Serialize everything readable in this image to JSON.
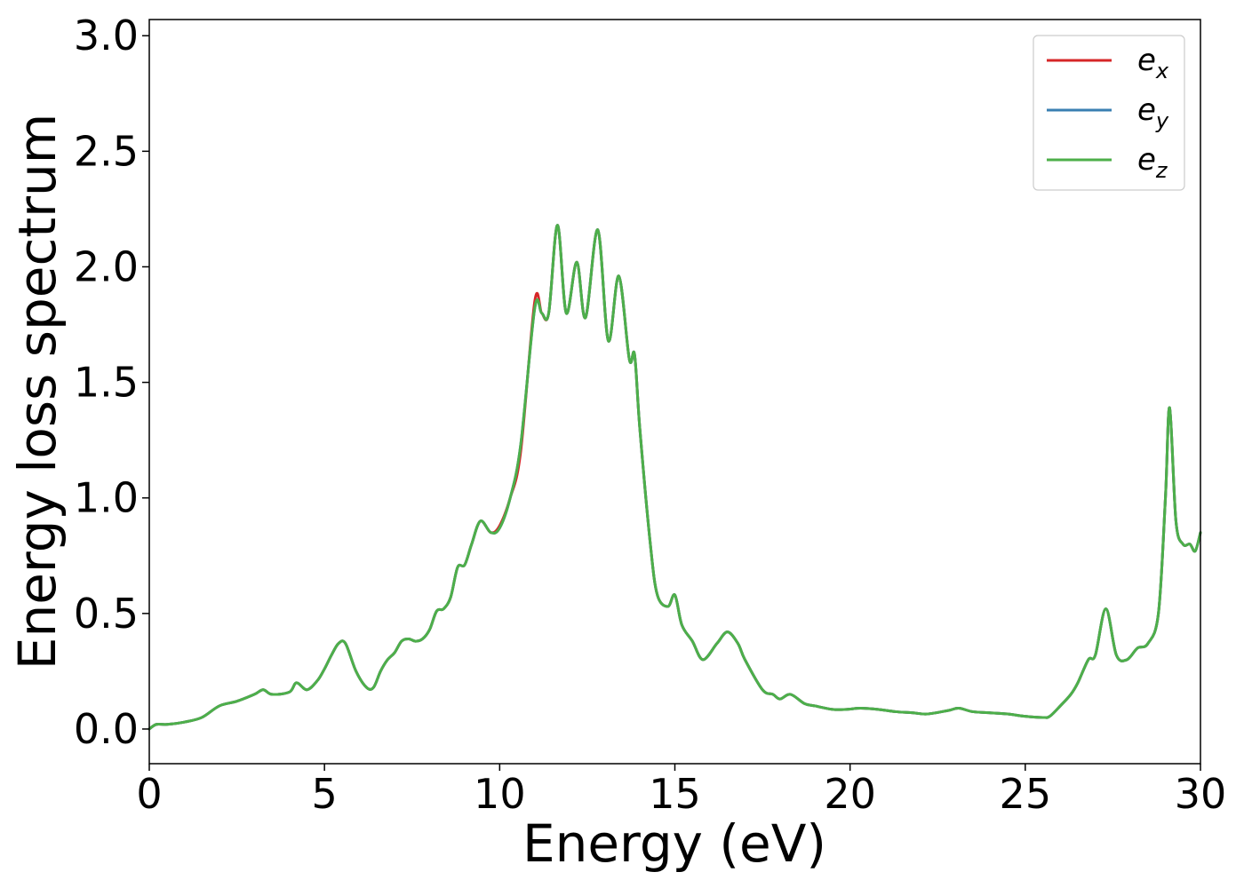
{
  "chart_data": {
    "type": "line",
    "title": "",
    "xlabel": "Energy (eV)",
    "ylabel": "Energy loss spectrum",
    "xlim": [
      0,
      30
    ],
    "ylim": [
      -0.15,
      3.07
    ],
    "xticks": [
      0,
      5,
      10,
      15,
      20,
      25,
      30
    ],
    "xtick_labels": [
      "0",
      "5",
      "10",
      "15",
      "20",
      "25",
      "30"
    ],
    "yticks": [
      0.0,
      0.5,
      1.0,
      1.5,
      2.0,
      2.5,
      3.0
    ],
    "ytick_labels": [
      "0.0",
      "0.5",
      "1.0",
      "1.5",
      "2.0",
      "2.5",
      "3.0"
    ],
    "grid": false,
    "legend_position": "top-right",
    "colors": {
      "ex": "#d62728",
      "ey": "#3a7fb2",
      "ez": "#4daf4a"
    },
    "series": [
      {
        "name": "e_x",
        "label_base": "e",
        "label_sub": "x",
        "color": "#d62728",
        "x": [
          0,
          0.2,
          0.5,
          1.0,
          1.5,
          2.0,
          2.5,
          3.0,
          3.25,
          3.5,
          4.0,
          4.2,
          4.5,
          4.8,
          5.0,
          5.2,
          5.4,
          5.6,
          5.9,
          6.2,
          6.4,
          6.6,
          6.8,
          7.0,
          7.2,
          7.4,
          7.6,
          7.8,
          8.0,
          8.2,
          8.4,
          8.6,
          8.8,
          9.0,
          9.2,
          9.45,
          9.75,
          10.0,
          10.3,
          10.6,
          11.0,
          11.2,
          11.4,
          11.65,
          11.9,
          12.2,
          12.45,
          12.8,
          13.1,
          13.4,
          13.7,
          13.85,
          14.0,
          14.3,
          14.5,
          14.8,
          15.0,
          15.2,
          15.5,
          15.8,
          16.2,
          16.5,
          16.8,
          17.0,
          17.5,
          17.8,
          18.0,
          18.3,
          18.7,
          19.0,
          19.5,
          19.9,
          20.3,
          20.8,
          21.3,
          21.8,
          22.2,
          22.8,
          23.1,
          23.5,
          24.0,
          24.5,
          25.0,
          25.5,
          25.7,
          26.0,
          26.3,
          26.5,
          26.8,
          27.0,
          27.3,
          27.6,
          27.9,
          28.2,
          28.5,
          28.8,
          29.0,
          29.12,
          29.3,
          29.5,
          29.7,
          29.85,
          30.0
        ],
        "values": [
          0.0,
          0.02,
          0.02,
          0.03,
          0.05,
          0.1,
          0.12,
          0.15,
          0.17,
          0.15,
          0.16,
          0.2,
          0.17,
          0.21,
          0.26,
          0.32,
          0.37,
          0.37,
          0.25,
          0.18,
          0.18,
          0.25,
          0.3,
          0.33,
          0.38,
          0.39,
          0.38,
          0.39,
          0.43,
          0.51,
          0.52,
          0.57,
          0.7,
          0.71,
          0.8,
          0.9,
          0.85,
          0.88,
          1.0,
          1.2,
          1.85,
          1.8,
          1.8,
          2.18,
          1.8,
          2.02,
          1.78,
          2.16,
          1.68,
          1.96,
          1.6,
          1.62,
          1.3,
          0.8,
          0.58,
          0.53,
          0.58,
          0.45,
          0.38,
          0.3,
          0.37,
          0.42,
          0.37,
          0.3,
          0.17,
          0.15,
          0.13,
          0.15,
          0.11,
          0.1,
          0.085,
          0.085,
          0.09,
          0.085,
          0.075,
          0.07,
          0.065,
          0.08,
          0.09,
          0.075,
          0.07,
          0.065,
          0.055,
          0.05,
          0.055,
          0.1,
          0.15,
          0.2,
          0.3,
          0.32,
          0.52,
          0.32,
          0.3,
          0.35,
          0.37,
          0.5,
          1.0,
          1.39,
          0.9,
          0.8,
          0.8,
          0.77,
          0.85
        ]
      },
      {
        "name": "e_y",
        "label_base": "e",
        "label_sub": "y",
        "color": "#3a7fb2",
        "x": [
          0,
          0.2,
          0.5,
          1.0,
          1.5,
          2.0,
          2.5,
          3.0,
          3.25,
          3.5,
          4.0,
          4.2,
          4.5,
          4.8,
          5.0,
          5.2,
          5.4,
          5.6,
          5.9,
          6.2,
          6.4,
          6.6,
          6.8,
          7.0,
          7.2,
          7.4,
          7.6,
          7.8,
          8.0,
          8.2,
          8.4,
          8.6,
          8.8,
          9.0,
          9.2,
          9.45,
          9.75,
          10.0,
          10.3,
          10.6,
          11.0,
          11.2,
          11.4,
          11.65,
          11.9,
          12.2,
          12.45,
          12.8,
          13.1,
          13.4,
          13.7,
          13.85,
          14.0,
          14.3,
          14.5,
          14.8,
          15.0,
          15.2,
          15.5,
          15.8,
          16.2,
          16.5,
          16.8,
          17.0,
          17.5,
          17.8,
          18.0,
          18.3,
          18.7,
          19.0,
          19.5,
          19.9,
          20.3,
          20.8,
          21.3,
          21.8,
          22.2,
          22.8,
          23.1,
          23.5,
          24.0,
          24.5,
          25.0,
          25.5,
          25.7,
          26.0,
          26.3,
          26.5,
          26.8,
          27.0,
          27.3,
          27.6,
          27.9,
          28.2,
          28.5,
          28.8,
          29.0,
          29.12,
          29.3,
          29.5,
          29.7,
          29.85,
          30.0
        ],
        "values": [
          0.0,
          0.02,
          0.02,
          0.03,
          0.05,
          0.1,
          0.12,
          0.15,
          0.17,
          0.15,
          0.16,
          0.2,
          0.17,
          0.21,
          0.26,
          0.32,
          0.37,
          0.37,
          0.25,
          0.18,
          0.18,
          0.25,
          0.3,
          0.33,
          0.38,
          0.39,
          0.38,
          0.39,
          0.43,
          0.51,
          0.52,
          0.57,
          0.7,
          0.71,
          0.8,
          0.9,
          0.85,
          0.87,
          1.0,
          1.23,
          1.82,
          1.8,
          1.8,
          2.18,
          1.8,
          2.02,
          1.78,
          2.16,
          1.68,
          1.96,
          1.6,
          1.62,
          1.3,
          0.8,
          0.58,
          0.53,
          0.58,
          0.45,
          0.38,
          0.3,
          0.37,
          0.42,
          0.37,
          0.3,
          0.17,
          0.15,
          0.13,
          0.15,
          0.11,
          0.1,
          0.085,
          0.085,
          0.09,
          0.085,
          0.075,
          0.07,
          0.065,
          0.08,
          0.09,
          0.075,
          0.07,
          0.065,
          0.055,
          0.05,
          0.055,
          0.1,
          0.15,
          0.2,
          0.3,
          0.32,
          0.52,
          0.32,
          0.3,
          0.35,
          0.37,
          0.5,
          1.0,
          1.39,
          0.9,
          0.8,
          0.8,
          0.77,
          0.85
        ]
      },
      {
        "name": "e_z",
        "label_base": "e",
        "label_sub": "z",
        "color": "#4daf4a",
        "x": [
          0,
          0.2,
          0.5,
          1.0,
          1.5,
          2.0,
          2.5,
          3.0,
          3.25,
          3.5,
          4.0,
          4.2,
          4.5,
          4.8,
          5.0,
          5.2,
          5.4,
          5.6,
          5.9,
          6.2,
          6.4,
          6.6,
          6.8,
          7.0,
          7.2,
          7.4,
          7.6,
          7.8,
          8.0,
          8.2,
          8.4,
          8.6,
          8.8,
          9.0,
          9.2,
          9.45,
          9.75,
          10.0,
          10.3,
          10.6,
          11.0,
          11.2,
          11.4,
          11.65,
          11.9,
          12.2,
          12.45,
          12.8,
          13.1,
          13.4,
          13.7,
          13.85,
          14.0,
          14.3,
          14.5,
          14.8,
          15.0,
          15.2,
          15.5,
          15.8,
          16.2,
          16.5,
          16.8,
          17.0,
          17.5,
          17.8,
          18.0,
          18.3,
          18.7,
          19.0,
          19.5,
          19.9,
          20.3,
          20.8,
          21.3,
          21.8,
          22.2,
          22.8,
          23.1,
          23.5,
          24.0,
          24.5,
          25.0,
          25.5,
          25.7,
          26.0,
          26.3,
          26.5,
          26.8,
          27.0,
          27.3,
          27.6,
          27.9,
          28.2,
          28.5,
          28.8,
          29.0,
          29.12,
          29.3,
          29.5,
          29.7,
          29.85,
          30.0
        ],
        "values": [
          0.0,
          0.02,
          0.02,
          0.03,
          0.05,
          0.1,
          0.12,
          0.15,
          0.17,
          0.15,
          0.16,
          0.2,
          0.17,
          0.21,
          0.26,
          0.32,
          0.37,
          0.37,
          0.25,
          0.18,
          0.18,
          0.25,
          0.3,
          0.33,
          0.38,
          0.39,
          0.38,
          0.39,
          0.43,
          0.51,
          0.52,
          0.57,
          0.7,
          0.71,
          0.8,
          0.9,
          0.85,
          0.87,
          1.0,
          1.23,
          1.82,
          1.8,
          1.8,
          2.18,
          1.8,
          2.02,
          1.78,
          2.16,
          1.68,
          1.96,
          1.6,
          1.62,
          1.3,
          0.8,
          0.58,
          0.53,
          0.58,
          0.45,
          0.38,
          0.3,
          0.37,
          0.42,
          0.37,
          0.3,
          0.17,
          0.15,
          0.13,
          0.15,
          0.11,
          0.1,
          0.085,
          0.085,
          0.09,
          0.085,
          0.075,
          0.07,
          0.065,
          0.08,
          0.09,
          0.075,
          0.07,
          0.065,
          0.055,
          0.05,
          0.055,
          0.1,
          0.15,
          0.2,
          0.3,
          0.32,
          0.52,
          0.32,
          0.3,
          0.35,
          0.37,
          0.5,
          1.0,
          1.39,
          0.9,
          0.8,
          0.8,
          0.77,
          0.85
        ]
      }
    ]
  }
}
